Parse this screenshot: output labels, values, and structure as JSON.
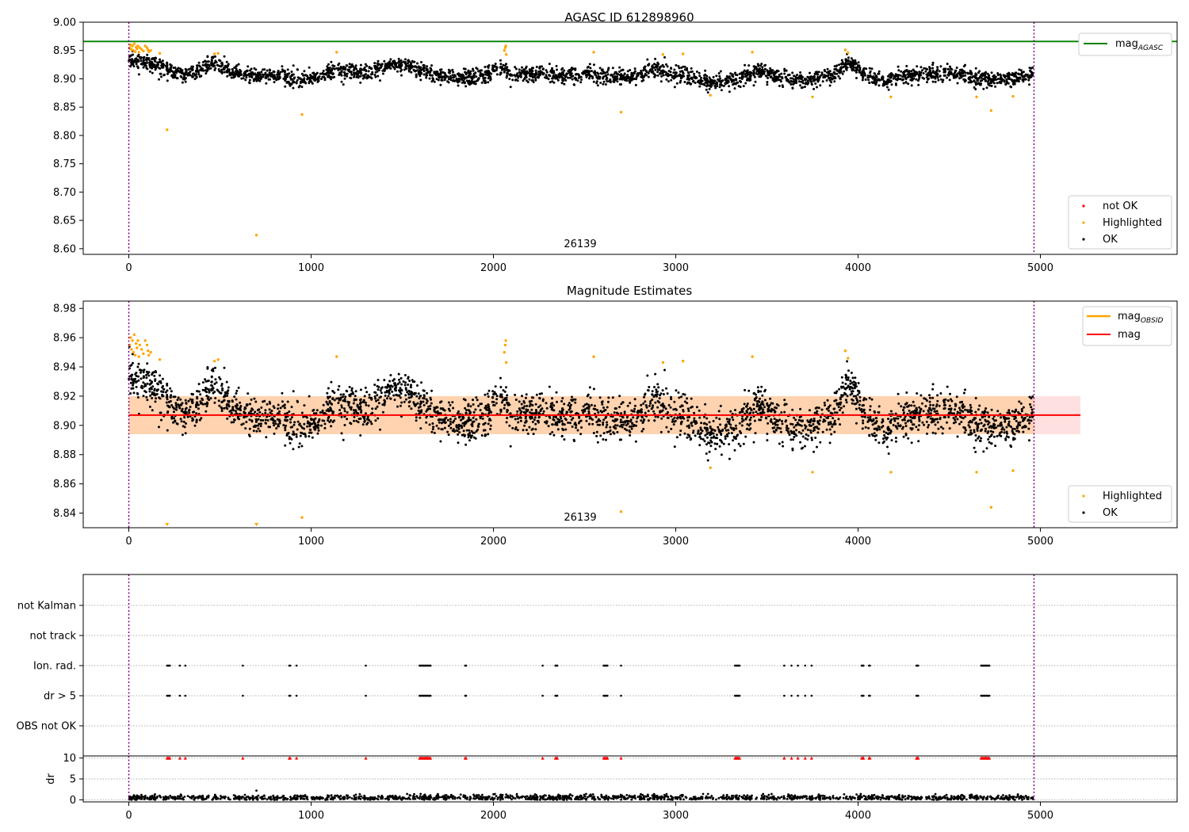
{
  "chart_data": [
    {
      "type": "scatter",
      "title": "AGASC ID 612898960",
      "xlabel": "",
      "ylabel": "",
      "xlim": [
        -250,
        5750
      ],
      "ylim": [
        8.59,
        9.0
      ],
      "xticks": [
        0,
        1000,
        2000,
        3000,
        4000,
        5000
      ],
      "yticks": [
        8.6,
        8.65,
        8.7,
        8.75,
        8.8,
        8.85,
        8.9,
        8.95,
        9.0
      ],
      "obsid_label": "26139",
      "obsid_label_x": 2470,
      "obsid_boundaries": [
        0,
        4965
      ],
      "reference_line": {
        "name": "mag_AGASC",
        "value": 8.966,
        "color": "#008000"
      },
      "lines_legend": [
        {
          "label": "mag",
          "subscript": "AGASC",
          "color": "#008000"
        }
      ],
      "points_legend": [
        {
          "label": "not OK",
          "color": "#ff0000"
        },
        {
          "label": "Highlighted",
          "color": "#ffa500"
        },
        {
          "label": "OK",
          "color": "#000000"
        }
      ],
      "series": [
        {
          "name": "OK",
          "color": "#000000",
          "baseline": [
            [
              0,
              8.935
            ],
            [
              100,
              8.93
            ],
            [
              200,
              8.918
            ],
            [
              300,
              8.905
            ],
            [
              400,
              8.918
            ],
            [
              470,
              8.93
            ],
            [
              550,
              8.912
            ],
            [
              700,
              8.905
            ],
            [
              850,
              8.905
            ],
            [
              950,
              8.898
            ],
            [
              1050,
              8.905
            ],
            [
              1150,
              8.915
            ],
            [
              1250,
              8.91
            ],
            [
              1350,
              8.912
            ],
            [
              1450,
              8.925
            ],
            [
              1550,
              8.92
            ],
            [
              1650,
              8.91
            ],
            [
              1800,
              8.9
            ],
            [
              1950,
              8.905
            ],
            [
              2050,
              8.92
            ],
            [
              2100,
              8.905
            ],
            [
              2250,
              8.91
            ],
            [
              2400,
              8.905
            ],
            [
              2500,
              8.91
            ],
            [
              2600,
              8.905
            ],
            [
              2750,
              8.902
            ],
            [
              2900,
              8.918
            ],
            [
              3000,
              8.905
            ],
            [
              3100,
              8.902
            ],
            [
              3200,
              8.895
            ],
            [
              3350,
              8.9
            ],
            [
              3450,
              8.915
            ],
            [
              3550,
              8.905
            ],
            [
              3700,
              8.895
            ],
            [
              3850,
              8.905
            ],
            [
              3950,
              8.93
            ],
            [
              4050,
              8.905
            ],
            [
              4150,
              8.895
            ],
            [
              4250,
              8.905
            ],
            [
              4400,
              8.91
            ],
            [
              4500,
              8.91
            ],
            [
              4650,
              8.9
            ],
            [
              4800,
              8.9
            ],
            [
              4960,
              8.905
            ]
          ],
          "scatter": 0.007,
          "count": 3000
        },
        {
          "name": "Highlighted",
          "color": "#ffa500",
          "values": [
            [
              5,
              8.955
            ],
            [
              10,
              8.96
            ],
            [
              15,
              8.952
            ],
            [
              20,
              8.958
            ],
            [
              25,
              8.95
            ],
            [
              30,
              8.962
            ],
            [
              35,
              8.948
            ],
            [
              40,
              8.956
            ],
            [
              45,
              8.953
            ],
            [
              50,
              8.958
            ],
            [
              55,
              8.947
            ],
            [
              60,
              8.955
            ],
            [
              70,
              8.952
            ],
            [
              80,
              8.949
            ],
            [
              90,
              8.958
            ],
            [
              100,
              8.955
            ],
            [
              105,
              8.951
            ],
            [
              110,
              8.948
            ],
            [
              120,
              8.95
            ],
            [
              170,
              8.945
            ],
            [
              210,
              8.81
            ],
            [
              470,
              8.944
            ],
            [
              490,
              8.945
            ],
            [
              700,
              8.624
            ],
            [
              950,
              8.837
            ],
            [
              1140,
              8.947
            ],
            [
              2060,
              8.95
            ],
            [
              2065,
              8.955
            ],
            [
              2068,
              8.958
            ],
            [
              2070,
              8.943
            ],
            [
              2550,
              8.947
            ],
            [
              2700,
              8.841
            ],
            [
              2930,
              8.943
            ],
            [
              3040,
              8.944
            ],
            [
              3190,
              8.871
            ],
            [
              3420,
              8.947
            ],
            [
              3750,
              8.868
            ],
            [
              3930,
              8.951
            ],
            [
              3945,
              8.946
            ],
            [
              4180,
              8.868
            ],
            [
              4650,
              8.868
            ],
            [
              4730,
              8.844
            ],
            [
              4850,
              8.869
            ]
          ]
        }
      ]
    },
    {
      "type": "scatter",
      "title": "Magnitude Estimates",
      "xlabel": "",
      "ylabel": "",
      "xlim": [
        -250,
        5750
      ],
      "ylim": [
        8.83,
        8.985
      ],
      "xticks": [
        0,
        1000,
        2000,
        3000,
        4000,
        5000
      ],
      "yticks": [
        8.84,
        8.86,
        8.88,
        8.9,
        8.92,
        8.94,
        8.96,
        8.98
      ],
      "obsid_label": "26139",
      "obsid_label_x": 2470,
      "obsid_boundaries": [
        0,
        4965
      ],
      "mag_line": {
        "name": "mag",
        "value": 8.907,
        "x_range": [
          0,
          5220
        ],
        "color": "#ff0000"
      },
      "mag_band": {
        "low": 8.894,
        "high": 8.92,
        "x_range": [
          0,
          5220
        ],
        "color": "#ff0000"
      },
      "obsid_line": {
        "name": "mag_OBSID",
        "value": 8.907,
        "x_range": [
          0,
          4965
        ],
        "color": "#ffa500"
      },
      "obsid_band": {
        "low": 8.894,
        "high": 8.92,
        "x_range": [
          0,
          4965
        ],
        "color": "#ffa500"
      },
      "lines_legend": [
        {
          "label": "mag",
          "subscript": "OBSID",
          "color": "#ffa500"
        },
        {
          "label": "mag",
          "subscript": "",
          "color": "#ff0000"
        }
      ],
      "points_legend": [
        {
          "label": "Highlighted",
          "color": "#ffa500"
        },
        {
          "label": "OK",
          "color": "#000000"
        }
      ]
    },
    {
      "type": "scatter",
      "title": "",
      "xlabel": "",
      "ylabel": "",
      "xlim": [
        -250,
        5750
      ],
      "categories": [
        "OBS not OK",
        "dr > 5",
        "Ion. rad.",
        "not track",
        "not Kalman"
      ],
      "obsid_boundaries": [
        0,
        4965
      ],
      "flagged_times": [
        210,
        215,
        220,
        225,
        280,
        310,
        625,
        880,
        885,
        920,
        1300,
        1595,
        1600,
        1605,
        1610,
        1615,
        1620,
        1625,
        1630,
        1635,
        1640,
        1645,
        1650,
        1655,
        1845,
        1850,
        2270,
        2340,
        2345,
        2350,
        2605,
        2610,
        2615,
        2620,
        2625,
        2700,
        3325,
        3330,
        3335,
        3340,
        3345,
        3350,
        3595,
        3635,
        3670,
        3710,
        3745,
        4020,
        4025,
        4030,
        4060,
        4065,
        4320,
        4325,
        4330,
        4675,
        4680,
        4685,
        4690,
        4695,
        4700,
        4705,
        4710,
        4715,
        4720
      ],
      "flag_rows": [
        "dr > 5",
        "Ion. rad."
      ]
    },
    {
      "type": "scatter",
      "title": "",
      "xlabel": "",
      "ylabel": "dr",
      "xlim": [
        -250,
        5750
      ],
      "ylim": [
        -0.5,
        10.5
      ],
      "xticks": [
        0,
        1000,
        2000,
        3000,
        4000,
        5000
      ],
      "yticks": [
        0,
        5,
        10
      ],
      "threshold_markers": {
        "value": 10,
        "color": "#ff0000"
      },
      "series": [
        {
          "name": "dr",
          "color": "#000000",
          "typical": 0.5,
          "max": 2.2,
          "outlier": [
            700,
            2.2
          ]
        }
      ]
    }
  ]
}
